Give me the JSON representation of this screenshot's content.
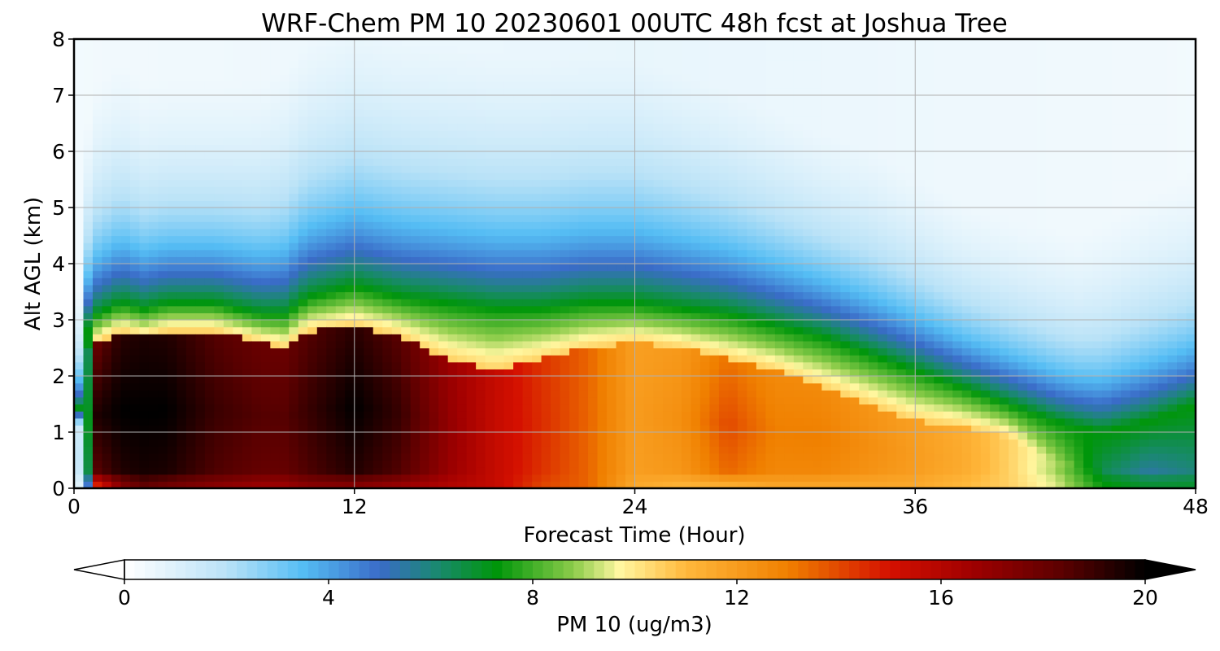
{
  "chart_data": {
    "type": "heatmap",
    "title": "WRF-Chem PM 10  20230601 00UTC 48h fcst at Joshua Tree",
    "xlabel": "Forecast Time (Hour)",
    "ylabel": "Alt AGL (km)",
    "xlim": [
      0,
      48
    ],
    "ylim": [
      0,
      8
    ],
    "x_ticks": [
      0,
      12,
      24,
      36,
      48
    ],
    "y_ticks": [
      0,
      1,
      2,
      3,
      4,
      5,
      6,
      7,
      8
    ],
    "grid": true,
    "colorbar": {
      "label": "PM 10  (ug/m3)",
      "min": 0,
      "max": 20,
      "ticks": [
        0,
        4,
        8,
        12,
        16,
        20
      ],
      "extend": "both",
      "colors": [
        "#ffffff",
        "#b9e2f7",
        "#55bdf4",
        "#3a6cc8",
        "#188a6a",
        "#00960a",
        "#8ccc4a",
        "#fff7a0",
        "#ffb83c",
        "#f08000",
        "#d41000",
        "#a00000",
        "#5a0000",
        "#000000"
      ],
      "stops": [
        0,
        2,
        3.5,
        5,
        6.2,
        7.3,
        8.8,
        9.7,
        11,
        13,
        15,
        16.6,
        18.4,
        20
      ]
    },
    "profiles": {
      "hours": [
        0,
        0.5,
        1,
        2,
        3,
        4,
        6,
        8,
        9,
        10,
        12,
        14,
        16,
        18,
        20,
        22,
        24,
        26,
        28,
        30,
        32,
        34,
        36,
        38,
        40,
        42,
        43,
        44,
        46,
        48
      ],
      "surface_ppm": [
        0,
        2,
        14,
        17,
        18,
        17.5,
        17,
        16.5,
        16.5,
        17,
        17,
        16.5,
        16,
        15.5,
        14,
        13.5,
        11.5,
        11,
        11,
        11.5,
        11.5,
        11.5,
        11.5,
        11,
        10.5,
        9.5,
        8.5,
        7.5,
        7,
        7
      ],
      "core_ppm": [
        0,
        4,
        19.5,
        20,
        20,
        20,
        19,
        18.5,
        18.5,
        19,
        20,
        19,
        17,
        15.5,
        14.5,
        13.5,
        12,
        12.5,
        14,
        13,
        13,
        12.5,
        12,
        11.5,
        10.5,
        9,
        7.8,
        6.5,
        5.5,
        6
      ],
      "core_top_km": [
        0.3,
        2.4,
        2.6,
        2.8,
        2.7,
        2.8,
        2.8,
        2.6,
        2.5,
        2.8,
        2.9,
        2.7,
        2.3,
        2.1,
        2.3,
        2.5,
        2.6,
        2.5,
        2.3,
        2.1,
        1.8,
        1.5,
        1.2,
        1.1,
        0.9,
        0.5,
        0.4,
        0.3,
        0.3,
        0.3
      ],
      "inv_top_km": [
        0.5,
        2.8,
        3.1,
        3.3,
        3.2,
        3.3,
        3.3,
        3.1,
        3.1,
        3.4,
        3.6,
        3.4,
        3.3,
        3.2,
        3.2,
        3.3,
        3.3,
        3.2,
        3.1,
        2.9,
        2.7,
        2.4,
        2.1,
        1.8,
        1.5,
        1.2,
        1.1,
        1.0,
        1.2,
        1.5
      ],
      "decay_km": [
        0.4,
        1.2,
        1.4,
        1.5,
        1.4,
        1.4,
        1.4,
        1.5,
        1.6,
        1.7,
        1.8,
        1.8,
        1.8,
        1.8,
        1.8,
        1.8,
        1.8,
        1.7,
        1.6,
        1.5,
        1.4,
        1.4,
        1.3,
        1.2,
        1.2,
        1.2,
        1.2,
        1.3,
        1.4,
        1.4
      ]
    }
  }
}
